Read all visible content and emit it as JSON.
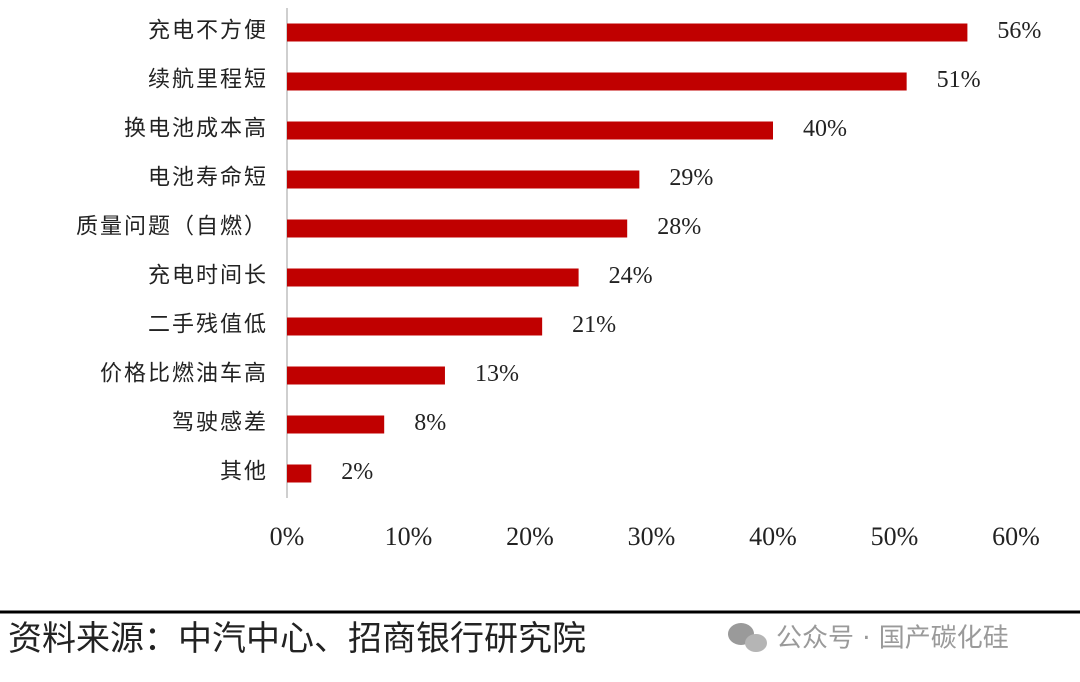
{
  "chart_data": {
    "type": "barh",
    "categories": [
      "充电不方便",
      "续航里程短",
      "换电池成本高",
      "电池寿命短",
      "质量问题（自燃）",
      "充电时间长",
      "二手残值低",
      "价格比燃油车高",
      "驾驶感差",
      "其他"
    ],
    "values": [
      56,
      51,
      40,
      29,
      28,
      24,
      21,
      13,
      8,
      2
    ],
    "value_labels": [
      "56%",
      "51%",
      "40%",
      "29%",
      "28%",
      "24%",
      "21%",
      "13%",
      "8%",
      "2%"
    ],
    "color": "#c00000",
    "xlim": [
      0,
      60
    ],
    "xticks": [
      {
        "value": 0,
        "label": "0%"
      },
      {
        "value": 10,
        "label": "10%"
      },
      {
        "value": 20,
        "label": "20%"
      },
      {
        "value": 30,
        "label": "30%"
      },
      {
        "value": 40,
        "label": "40%"
      },
      {
        "value": 50,
        "label": "50%"
      },
      {
        "value": 60,
        "label": "60%"
      }
    ],
    "grid": false
  },
  "source": "资料来源：中汽中心、招商银行研究院",
  "watermark": "公众号 · 国产碳化硅"
}
